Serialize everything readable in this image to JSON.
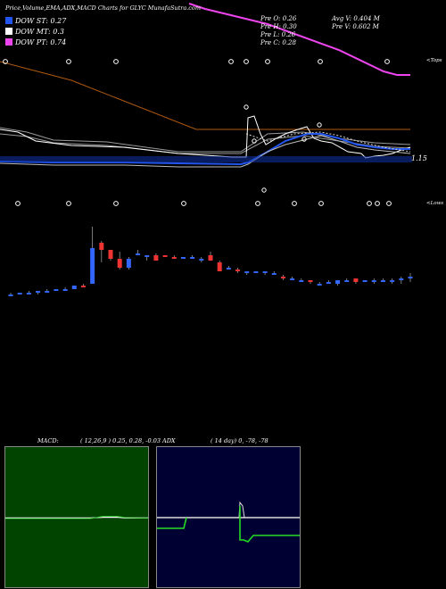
{
  "header": {
    "title": "Price,Volume,EMA,ADX,MACD Charts for GLYC MunafaSutra.com"
  },
  "legend": [
    {
      "label": "DOW ST: 0.27",
      "color": "#2255ee"
    },
    {
      "label": "DOW MT: 0.3",
      "color": "#ffffff"
    },
    {
      "label": "DOW PT: 0.74",
      "color": "#ee44ee"
    }
  ],
  "stats": {
    "prev_open": "Pre  O: 0.26",
    "prev_high": "Pre  H: 0.30",
    "prev_low": "Pre  L: 0.26",
    "prev_close": "Pre  C: 0.28",
    "avg_volume": "Avg V: 0.404  M",
    "prev_volume": "Pre  V: 0.602  M"
  },
  "labels": {
    "price_marker": "1.15",
    "tops_label": "<Tops",
    "lows_label": "<Lows"
  },
  "colors": {
    "background": "#000000",
    "brown_line": "#b05a10",
    "blue_line": "#2255ee",
    "magenta_line": "#ee44ee",
    "bull_candle": "#3366ff",
    "bear_candle": "#ee3333",
    "macd_panel": "#004400",
    "adx_panel": "#000033",
    "adx_green": "#22dd22"
  },
  "macd": {
    "title": "MACD:",
    "params": "( 12,26,9 ) 0.25,  0.28,  -0.03"
  },
  "adx": {
    "title": "ADX",
    "params": "( 14  day) 0,  -78,  -78"
  },
  "chart_data": {
    "type": "candlestick",
    "candles": [
      {
        "o": 0.2,
        "h": 0.21,
        "l": 0.19,
        "c": 0.2
      },
      {
        "o": 0.2,
        "h": 0.21,
        "l": 0.2,
        "c": 0.21
      },
      {
        "o": 0.21,
        "h": 0.22,
        "l": 0.2,
        "c": 0.21
      },
      {
        "o": 0.21,
        "h": 0.22,
        "l": 0.2,
        "c": 0.22
      },
      {
        "o": 0.22,
        "h": 0.23,
        "l": 0.21,
        "c": 0.22
      },
      {
        "o": 0.22,
        "h": 0.23,
        "l": 0.22,
        "c": 0.23
      },
      {
        "o": 0.23,
        "h": 0.24,
        "l": 0.22,
        "c": 0.23
      },
      {
        "o": 0.23,
        "h": 0.25,
        "l": 0.23,
        "c": 0.25
      },
      {
        "o": 0.25,
        "h": 0.26,
        "l": 0.24,
        "c": 0.24
      },
      {
        "o": 0.26,
        "h": 0.58,
        "l": 0.26,
        "c": 0.46
      },
      {
        "o": 0.49,
        "h": 0.5,
        "l": 0.38,
        "c": 0.45
      },
      {
        "o": 0.45,
        "h": 0.45,
        "l": 0.39,
        "c": 0.4
      },
      {
        "o": 0.4,
        "h": 0.44,
        "l": 0.34,
        "c": 0.35
      },
      {
        "o": 0.35,
        "h": 0.41,
        "l": 0.34,
        "c": 0.4
      },
      {
        "o": 0.42,
        "h": 0.45,
        "l": 0.42,
        "c": 0.43
      },
      {
        "o": 0.41,
        "h": 0.42,
        "l": 0.39,
        "c": 0.42
      },
      {
        "o": 0.42,
        "h": 0.43,
        "l": 0.39,
        "c": 0.39
      },
      {
        "o": 0.42,
        "h": 0.42,
        "l": 0.41,
        "c": 0.41
      },
      {
        "o": 0.41,
        "h": 0.42,
        "l": 0.4,
        "c": 0.4
      },
      {
        "o": 0.4,
        "h": 0.41,
        "l": 0.4,
        "c": 0.41
      },
      {
        "o": 0.41,
        "h": 0.42,
        "l": 0.4,
        "c": 0.41
      },
      {
        "o": 0.4,
        "h": 0.41,
        "l": 0.38,
        "c": 0.4
      },
      {
        "o": 0.42,
        "h": 0.44,
        "l": 0.39,
        "c": 0.39
      },
      {
        "o": 0.38,
        "h": 0.39,
        "l": 0.33,
        "c": 0.33
      },
      {
        "o": 0.35,
        "h": 0.36,
        "l": 0.34,
        "c": 0.35
      },
      {
        "o": 0.34,
        "h": 0.35,
        "l": 0.32,
        "c": 0.33
      },
      {
        "o": 0.32,
        "h": 0.33,
        "l": 0.31,
        "c": 0.33
      },
      {
        "o": 0.33,
        "h": 0.33,
        "l": 0.32,
        "c": 0.33
      },
      {
        "o": 0.32,
        "h": 0.33,
        "l": 0.31,
        "c": 0.33
      },
      {
        "o": 0.32,
        "h": 0.33,
        "l": 0.31,
        "c": 0.32
      },
      {
        "o": 0.3,
        "h": 0.31,
        "l": 0.28,
        "c": 0.29
      },
      {
        "o": 0.29,
        "h": 0.3,
        "l": 0.28,
        "c": 0.29
      },
      {
        "o": 0.28,
        "h": 0.29,
        "l": 0.27,
        "c": 0.28
      },
      {
        "o": 0.28,
        "h": 0.28,
        "l": 0.26,
        "c": 0.27
      },
      {
        "o": 0.26,
        "h": 0.27,
        "l": 0.25,
        "c": 0.26
      },
      {
        "o": 0.27,
        "h": 0.28,
        "l": 0.26,
        "c": 0.27
      },
      {
        "o": 0.26,
        "h": 0.28,
        "l": 0.25,
        "c": 0.28
      },
      {
        "o": 0.28,
        "h": 0.29,
        "l": 0.27,
        "c": 0.28
      },
      {
        "o": 0.29,
        "h": 0.29,
        "l": 0.26,
        "c": 0.27
      },
      {
        "o": 0.27,
        "h": 0.28,
        "l": 0.27,
        "c": 0.28
      },
      {
        "o": 0.27,
        "h": 0.29,
        "l": 0.26,
        "c": 0.28
      },
      {
        "o": 0.28,
        "h": 0.29,
        "l": 0.27,
        "c": 0.28
      },
      {
        "o": 0.28,
        "h": 0.29,
        "l": 0.26,
        "c": 0.28
      },
      {
        "o": 0.28,
        "h": 0.3,
        "l": 0.26,
        "c": 0.29
      },
      {
        "o": 0.29,
        "h": 0.32,
        "l": 0.27,
        "c": 0.3
      }
    ]
  }
}
